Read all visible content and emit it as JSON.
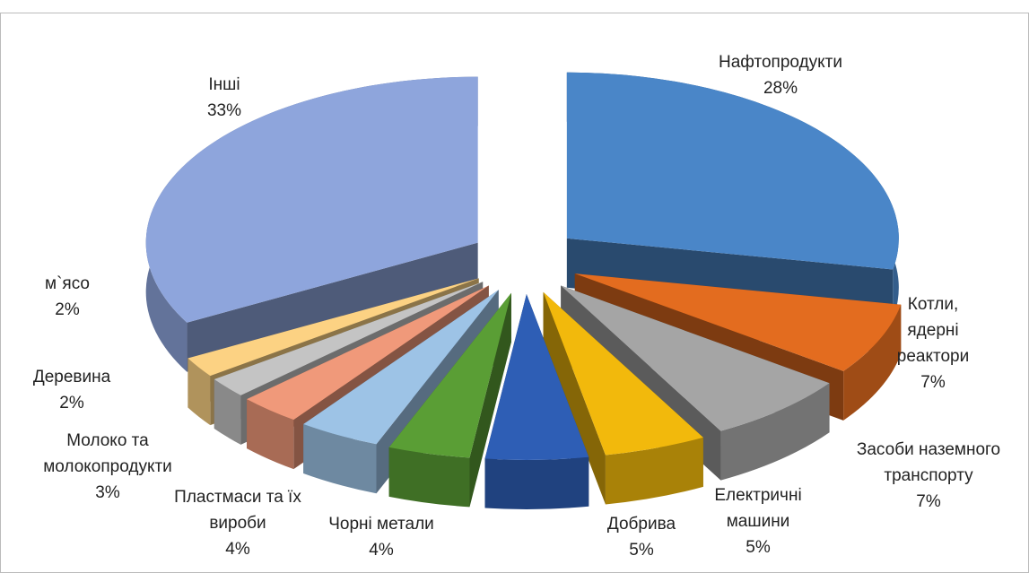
{
  "chart_data": {
    "type": "pie3d",
    "categories": [
      "Нафтопродукти",
      "Котли, ядерні реактори",
      "Засоби наземного транспорту",
      "Електричні машини",
      "Добрива",
      "Чорні метали",
      "Пластмаси та їх вироби",
      "Молоко та молокопродукти",
      "Деревина",
      "м`ясо",
      "Інші"
    ],
    "values": [
      28,
      7,
      7,
      5,
      5,
      4,
      4,
      3,
      2,
      2,
      33
    ],
    "value_labels": [
      "28%",
      "7%",
      "7%",
      "5%",
      "5%",
      "4%",
      "4%",
      "3%",
      "2%",
      "2%",
      "33%"
    ],
    "colors": [
      "#4a86c8",
      "#e36c1f",
      "#a5a5a5",
      "#f2b90c",
      "#2e5eb5",
      "#5a9e35",
      "#9dc3e6",
      "#f0997a",
      "#c4c4c4",
      "#fcd283",
      "#8ea5dc"
    ]
  }
}
